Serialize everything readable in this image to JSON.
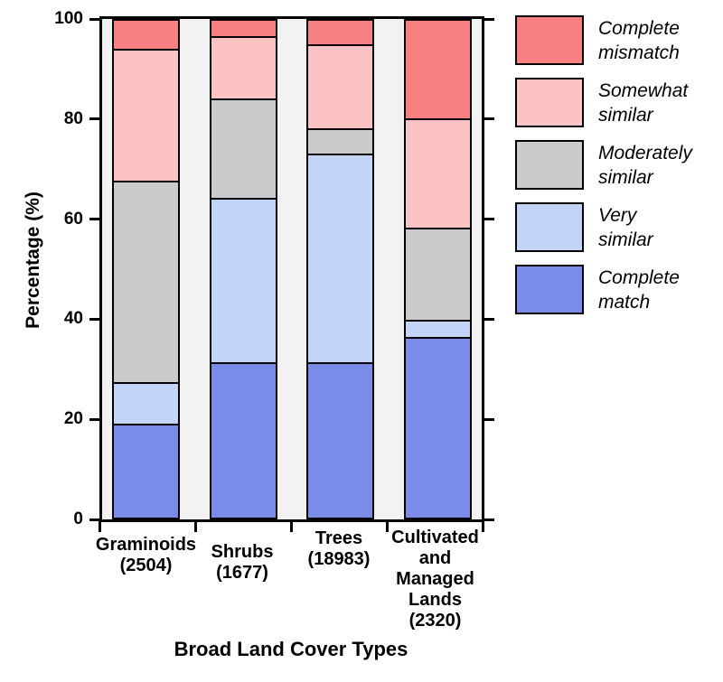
{
  "chart": {
    "y_axis_title": "Percentage (%)",
    "x_axis_title": "Broad Land Cover Types"
  },
  "chart_data": {
    "type": "bar",
    "subtype": "stacked",
    "title": "",
    "xlabel": "Broad Land Cover Types",
    "ylabel": "Percentage (%)",
    "ylim": [
      0,
      100
    ],
    "yticks": [
      0,
      20,
      40,
      60,
      80,
      100
    ],
    "grid": false,
    "legend_position": "right",
    "categories": [
      "Graminoids\n(2504)",
      "Shrubs\n(1677)",
      "Trees\n(18983)",
      "Cultivated\nand\nManaged\nLands\n(2320)"
    ],
    "category_counts": [
      2504,
      1677,
      18983,
      2320
    ],
    "series": [
      {
        "name": "Complete match",
        "color": "#7a8be8",
        "values": [
          18.5,
          31.0,
          31.0,
          36.0
        ]
      },
      {
        "name": "Very similar",
        "color": "#c4d4f8",
        "values": [
          8.5,
          33.0,
          42.0,
          3.5
        ]
      },
      {
        "name": "Moderately similar",
        "color": "#cbcbcb",
        "values": [
          40.5,
          20.0,
          5.0,
          18.5
        ]
      },
      {
        "name": "Somewhat similar",
        "color": "#fbc3c4",
        "values": [
          26.5,
          12.5,
          17.0,
          22.0
        ]
      },
      {
        "name": "Complete mismatch",
        "color": "#f98080",
        "values": [
          6.0,
          3.5,
          5.0,
          20.0
        ]
      }
    ]
  },
  "legend": {
    "items": [
      {
        "label": "Complete\nmismatch",
        "color": "#f98080"
      },
      {
        "label": "Somewhat\nsimilar",
        "color": "#fbc3c4"
      },
      {
        "label": "Moderately\nsimilar",
        "color": "#cbcbcb"
      },
      {
        "label": "Very\nsimilar",
        "color": "#c4d4f8"
      },
      {
        "label": "Complete\nmatch",
        "color": "#7a8be8"
      }
    ]
  }
}
